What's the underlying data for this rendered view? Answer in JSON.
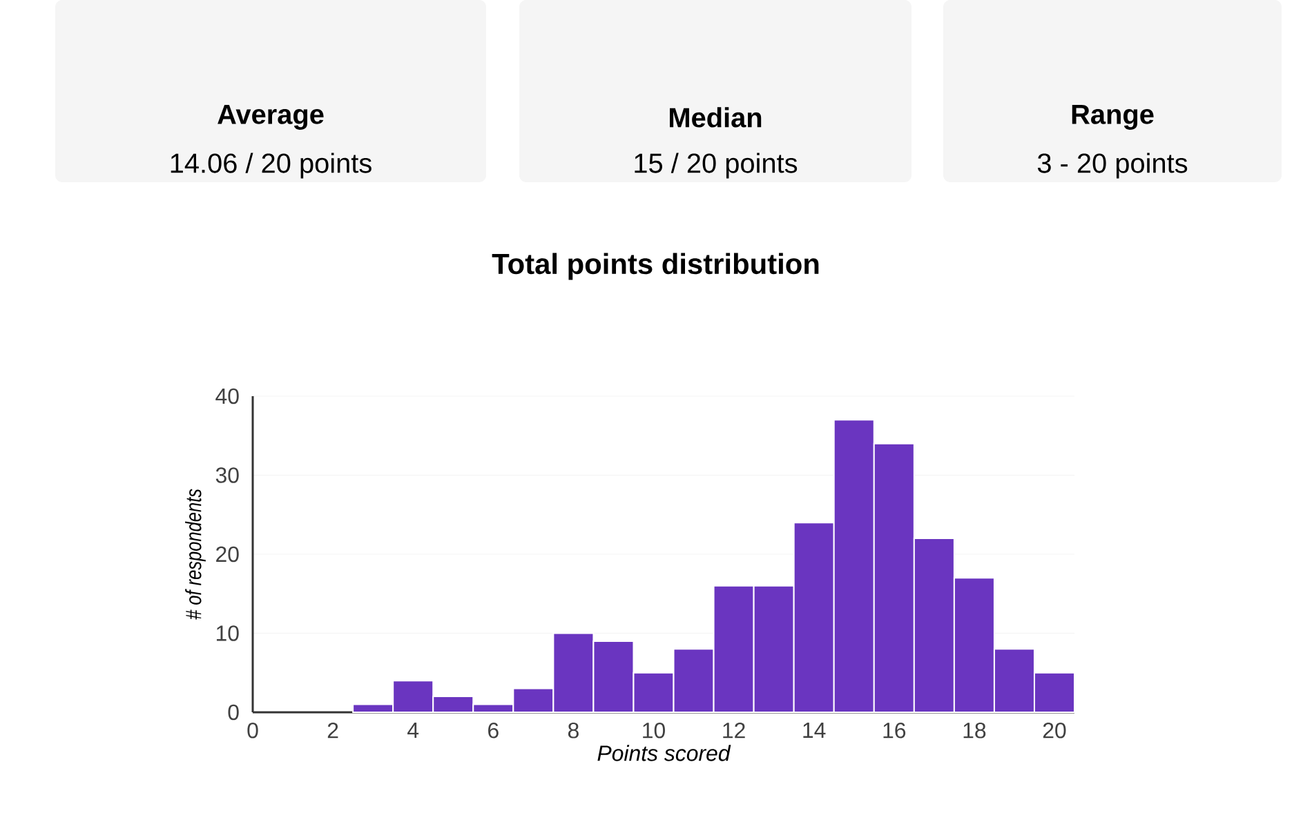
{
  "chart_data": {
    "type": "histogram",
    "title": "Total points distribution",
    "xlabel": "Points scored",
    "ylabel": "# of respondents",
    "bins": [
      2.5,
      3.5,
      4.5,
      5.5,
      6.5,
      7.5,
      8.5,
      9.5,
      10.5,
      11.5,
      12.5,
      13.5,
      14.5,
      15.5,
      16.5,
      17.5,
      18.5,
      19.5,
      20.5
    ],
    "values": [
      1,
      4,
      2,
      1,
      3,
      10,
      9,
      5,
      8,
      16,
      16,
      24,
      37,
      34,
      22,
      17,
      8,
      5
    ],
    "color": "#6a35c0",
    "xlim": [
      0,
      20.5
    ],
    "ylim": [
      0,
      40
    ],
    "xticks": [
      0,
      2,
      4,
      6,
      8,
      10,
      12,
      14,
      16,
      18,
      20
    ],
    "yticks": [
      0,
      10,
      20,
      30,
      40
    ],
    "grid": "y",
    "annotations": [
      "Average",
      "14.06 / 20 points",
      "Median",
      "15 / 20 points",
      "Range",
      "3 - 20 points"
    ]
  }
}
